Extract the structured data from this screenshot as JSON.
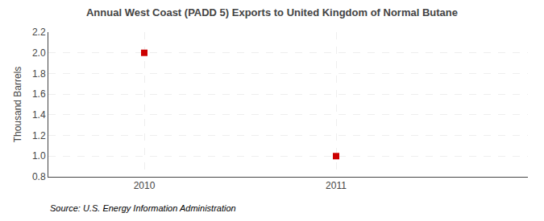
{
  "chart_data": {
    "type": "scatter",
    "title": "Annual West Coast (PADD 5) Exports to United Kingdom of Normal Butane",
    "ylabel": "Thousand Barrels",
    "annotations": [
      "Source: U.S. Energy Information Administration"
    ],
    "x": [
      2010,
      2011
    ],
    "values": [
      2.0,
      1.0
    ],
    "color": "#CC0000",
    "marker": "square",
    "xlim": [
      2009.5,
      2012.0
    ],
    "xticks": [
      2010,
      2011
    ],
    "ylim": [
      0.8,
      2.2
    ],
    "yticks": [
      0.8,
      {
        "value": 1.0,
        "label": "1.0"
      },
      1.2,
      1.4,
      1.6,
      1.8,
      {
        "value": 2.0,
        "label": "2.0"
      },
      2.2
    ],
    "grid": true
  }
}
